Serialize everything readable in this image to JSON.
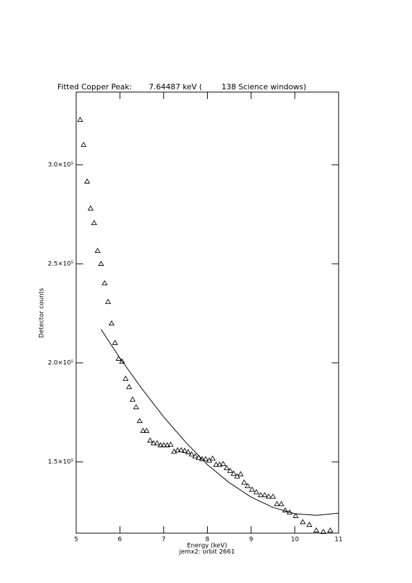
{
  "chart_data": {
    "type": "scatter",
    "title": "Fitted Copper Peak:       7.64487 keV (        138 Science windows)",
    "subtitle": "jemx2: orbit 2661",
    "x_label": "Energy (keV)",
    "y_label": "Detector counts",
    "xlim": [
      5,
      11
    ],
    "ylim": [
      114000,
      336700
    ],
    "xticks": [
      5,
      6,
      7,
      8,
      9,
      10,
      11
    ],
    "yticks": [
      {
        "value": 150000,
        "label": "1.5×10⁵"
      },
      {
        "value": 200000,
        "label": "2.0×10⁵"
      },
      {
        "value": 250000,
        "label": "2.5×10⁵"
      },
      {
        "value": 300000,
        "label": "3.0×10⁵"
      }
    ],
    "series": [
      {
        "type": "scatter",
        "marker": "triangle",
        "color": "#000000",
        "x": [
          5.09,
          5.17,
          5.25,
          5.33,
          5.41,
          5.49,
          5.57,
          5.65,
          5.73,
          5.81,
          5.89,
          5.97,
          6.05,
          6.13,
          6.21,
          6.29,
          6.37,
          6.45,
          6.53,
          6.61,
          6.69,
          6.77,
          6.85,
          6.93,
          7.0,
          7.08,
          7.16,
          7.24,
          7.32,
          7.4,
          7.48,
          7.56,
          7.64,
          7.72,
          7.8,
          7.88,
          7.96,
          8.04,
          8.12,
          8.2,
          8.28,
          8.36,
          8.44,
          8.52,
          8.6,
          8.68,
          8.76,
          8.84,
          8.92,
          9.02,
          9.12,
          9.22,
          9.31,
          9.4,
          9.5,
          9.59,
          9.69,
          9.78,
          9.88,
          10.02,
          10.18,
          10.33,
          10.49,
          10.65,
          10.81
        ],
        "values": [
          322700,
          310100,
          291600,
          278000,
          270600,
          256600,
          250000,
          240200,
          230800,
          219900,
          210100,
          202100,
          200700,
          192000,
          187800,
          181500,
          177600,
          170600,
          165700,
          165700,
          160800,
          159400,
          159400,
          158400,
          158400,
          158400,
          158700,
          155200,
          155900,
          155900,
          155600,
          154900,
          153800,
          152800,
          152100,
          151400,
          151400,
          150700,
          151700,
          148600,
          148600,
          149000,
          146900,
          145500,
          144100,
          142700,
          143800,
          139600,
          137800,
          136000,
          134700,
          133200,
          133200,
          132500,
          132500,
          128700,
          128700,
          125500,
          124500,
          122700,
          119600,
          118200,
          115400,
          114700,
          115400
        ]
      },
      {
        "type": "line",
        "color": "#000000",
        "x": [
          5.57,
          6.0,
          6.5,
          7.0,
          7.5,
          8.0,
          8.5,
          9.0,
          9.5,
          10.0,
          10.5,
          11.0
        ],
        "values": [
          216800,
          202400,
          187000,
          172700,
          160000,
          148600,
          139500,
          132200,
          127000,
          123800,
          123000,
          124100
        ]
      }
    ]
  }
}
